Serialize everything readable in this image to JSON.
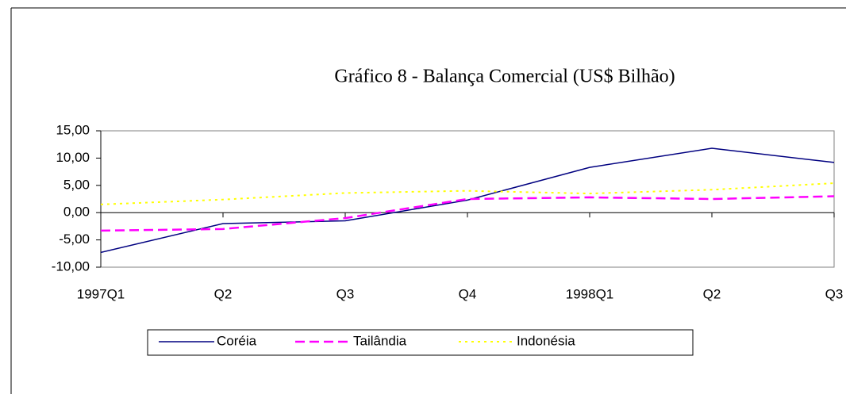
{
  "chart_data": {
    "type": "line",
    "title": "Gráfico 8 - Balança Comercial (US$ Bilhão)",
    "categories": [
      "1997Q1",
      "Q2",
      "Q3",
      "Q4",
      "1998Q1",
      "Q2",
      "Q3"
    ],
    "series": [
      {
        "name": "Coréia",
        "color": "#000080",
        "dash": "solid",
        "values": [
          -7.3,
          -2.0,
          -1.5,
          2.3,
          8.3,
          11.8,
          9.2
        ]
      },
      {
        "name": "Tailândia",
        "color": "#ff00ff",
        "dash": "dashed",
        "values": [
          -3.3,
          -3.0,
          -1.0,
          2.5,
          2.8,
          2.5,
          3.0
        ]
      },
      {
        "name": "Indonésia",
        "color": "#ffff00",
        "dash": "dotted",
        "values": [
          1.5,
          2.4,
          3.6,
          4.0,
          3.5,
          4.2,
          5.4
        ]
      }
    ],
    "ylim": [
      -10,
      15
    ],
    "yticks": [
      {
        "value": 15,
        "label": "15,00"
      },
      {
        "value": 10,
        "label": "10,00"
      },
      {
        "value": 5,
        "label": "5,00"
      },
      {
        "value": 0,
        "label": "0,00"
      },
      {
        "value": -5,
        "label": "-5,00"
      },
      {
        "value": -10,
        "label": "-10,00"
      }
    ],
    "legend": "bottom"
  }
}
